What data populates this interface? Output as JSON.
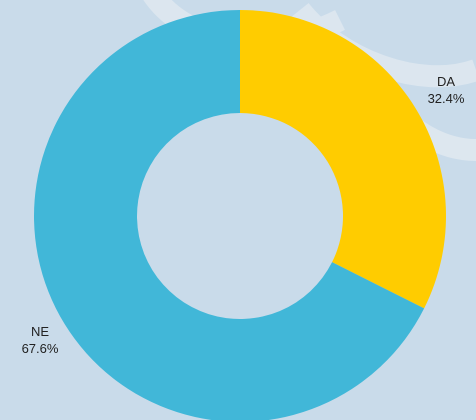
{
  "chart_data": {
    "type": "pie",
    "style": "donut",
    "title": "",
    "slices": [
      {
        "label": "DA",
        "value": 32.4,
        "value_label": "32.4%",
        "color": "#ffcc00"
      },
      {
        "label": "NE",
        "value": 67.6,
        "value_label": "67.6%",
        "color": "#41b7d8"
      }
    ]
  },
  "background": {
    "color": "#c9dbea",
    "watermark_color": "#dfe8f0"
  }
}
